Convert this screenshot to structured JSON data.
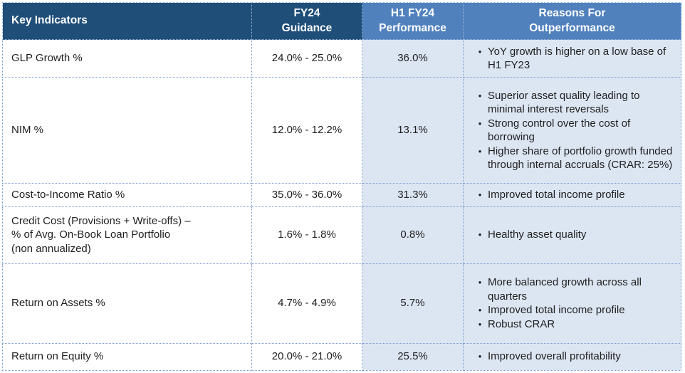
{
  "colors": {
    "header_dark_bg": "#1F4E79",
    "header_light_bg": "#5081BD",
    "light_cell_bg": "#DCE6F2",
    "dotted_border": "#7A9BD0",
    "header_text": "#FFFFFF",
    "body_text": "#1F1F1F"
  },
  "bullet_glyph": "•",
  "table": {
    "columns": [
      {
        "id": "indicator",
        "label": "Key Indicators"
      },
      {
        "id": "guidance",
        "label": "FY24\nGuidance"
      },
      {
        "id": "performance",
        "label": "H1 FY24\nPerformance"
      },
      {
        "id": "reasons",
        "label": "Reasons For\nOutperformance"
      }
    ],
    "rows": [
      {
        "indicator": "GLP Growth %",
        "guidance": "24.0% - 25.0%",
        "performance": "36.0%",
        "reasons": [
          "YoY growth is higher on a low base of H1 FY23"
        ]
      },
      {
        "indicator": "NIM %",
        "guidance": "12.0% - 12.2%",
        "performance": "13.1%",
        "reasons": [
          "Superior asset quality leading to minimal interest reversals",
          "Strong control over the cost of borrowing",
          "Higher share of portfolio growth funded through internal accruals (CRAR: 25%)"
        ]
      },
      {
        "indicator": "Cost-to-Income Ratio %",
        "guidance": "35.0% - 36.0%",
        "performance": "31.3%",
        "reasons": [
          "Improved total income profile"
        ]
      },
      {
        "indicator": "Credit Cost (Provisions + Write-offs) –\n% of Avg. On-Book Loan Portfolio\n(non annualized)",
        "guidance": "1.6% - 1.8%",
        "performance": "0.8%",
        "reasons": [
          "Healthy asset quality"
        ]
      },
      {
        "indicator": "Return on Assets %",
        "guidance": "4.7% - 4.9%",
        "performance": "5.7%",
        "reasons": [
          "More balanced growth across all quarters",
          "Improved total income profile",
          "Robust CRAR"
        ]
      },
      {
        "indicator": "Return on Equity %",
        "guidance": "20.0% - 21.0%",
        "performance": "25.5%",
        "reasons": [
          "Improved overall profitability"
        ]
      }
    ]
  }
}
